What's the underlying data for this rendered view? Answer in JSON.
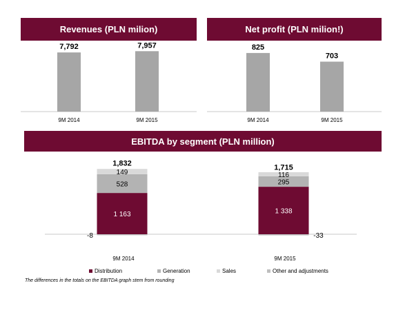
{
  "chart_data": [
    {
      "type": "bar",
      "title": "Revenues (PLN milion)",
      "categories": [
        "9M 2014",
        "9M 2015"
      ],
      "values": [
        7792,
        7957
      ],
      "value_labels": [
        "7,792",
        "7,957"
      ],
      "bar_color": "#a6a6a6",
      "ylim": [
        0,
        8800
      ],
      "grid": false
    },
    {
      "type": "bar",
      "title": "Net profit (PLN milion!)",
      "categories": [
        "9M 2014",
        "9M 2015"
      ],
      "values": [
        825,
        703
      ],
      "value_labels": [
        "825",
        "703"
      ],
      "bar_color": "#a6a6a6",
      "ylim": [
        0,
        960
      ],
      "grid": false
    },
    {
      "type": "bar",
      "stacked": true,
      "title": "EBITDA by segment (PLN million)",
      "categories": [
        "9M 2014",
        "9M 2015"
      ],
      "totals": [
        1832,
        1715
      ],
      "total_labels": [
        "1,832",
        "1,715"
      ],
      "series": [
        {
          "name": "Distribution",
          "values": [
            1163,
            1338
          ],
          "labels": [
            "1 163",
            "1 338"
          ],
          "color": "#6e0b32",
          "label_color": "#ffffff"
        },
        {
          "name": "Generation",
          "values": [
            528,
            295
          ],
          "labels": [
            "528",
            "295"
          ],
          "color": "#b3b3b3",
          "label_color": "#000000"
        },
        {
          "name": "Sales",
          "values": [
            149,
            116
          ],
          "labels": [
            "149",
            "116"
          ],
          "color": "#d9d9d9",
          "label_color": "#000000"
        },
        {
          "name": "Other and adjustments",
          "values": [
            -8,
            -33
          ],
          "labels": [
            "-8",
            "-33"
          ],
          "color": "#bfbfbf",
          "label_color": "#000000"
        }
      ],
      "ylim": [
        -40,
        2000
      ],
      "legend_position": "bottom",
      "grid": false
    }
  ],
  "footnote": "The differences in the totals on the EBITDA graph stem from rounding"
}
